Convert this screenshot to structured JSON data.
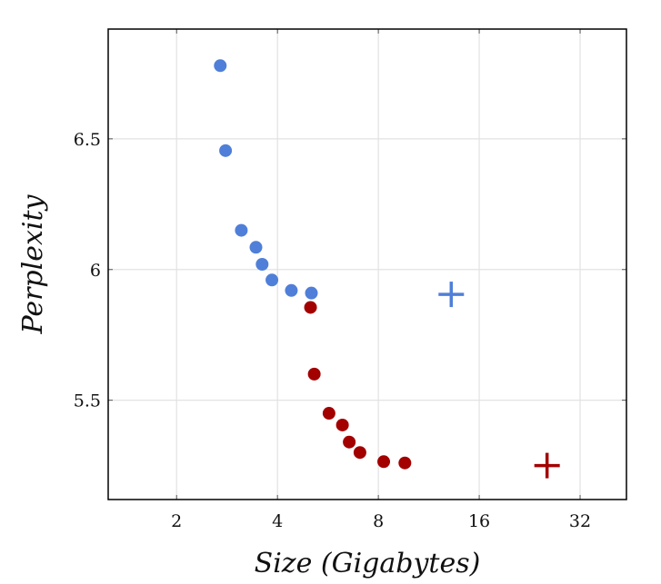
{
  "chart_data": {
    "type": "scatter",
    "xlabel": "Size (Gigabytes)",
    "ylabel": "Perplexity",
    "x_scale": "log2",
    "xlim": [
      1.25,
      44
    ],
    "ylim": [
      5.12,
      6.92
    ],
    "xticks": [
      2,
      4,
      8,
      16,
      32
    ],
    "xtick_labels": [
      "2",
      "4",
      "8",
      "16",
      "32"
    ],
    "yticks": [
      5.5,
      6,
      6.5
    ],
    "ytick_labels": [
      "5.5",
      "6",
      "6.5"
    ],
    "grid": true,
    "series": [
      {
        "color": "#4f7fd8",
        "marker": "circle",
        "points": [
          {
            "x": 2.7,
            "y": 6.78
          },
          {
            "x": 2.8,
            "y": 6.455
          },
          {
            "x": 3.12,
            "y": 6.15
          },
          {
            "x": 3.45,
            "y": 6.085
          },
          {
            "x": 3.6,
            "y": 6.02
          },
          {
            "x": 3.85,
            "y": 5.96
          },
          {
            "x": 4.4,
            "y": 5.92
          },
          {
            "x": 5.05,
            "y": 5.91
          }
        ]
      },
      {
        "color": "#a30000",
        "marker": "circle",
        "points": [
          {
            "x": 5.02,
            "y": 5.855
          },
          {
            "x": 5.15,
            "y": 5.6
          },
          {
            "x": 5.7,
            "y": 5.45
          },
          {
            "x": 6.25,
            "y": 5.405
          },
          {
            "x": 6.55,
            "y": 5.34
          },
          {
            "x": 7.05,
            "y": 5.3
          },
          {
            "x": 8.3,
            "y": 5.265
          },
          {
            "x": 9.6,
            "y": 5.26
          }
        ]
      },
      {
        "color": "#4f7fd8",
        "marker": "plus",
        "points": [
          {
            "x": 13.2,
            "y": 5.905
          }
        ]
      },
      {
        "color": "#a30000",
        "marker": "plus",
        "points": [
          {
            "x": 25.5,
            "y": 5.25
          }
        ]
      }
    ]
  }
}
